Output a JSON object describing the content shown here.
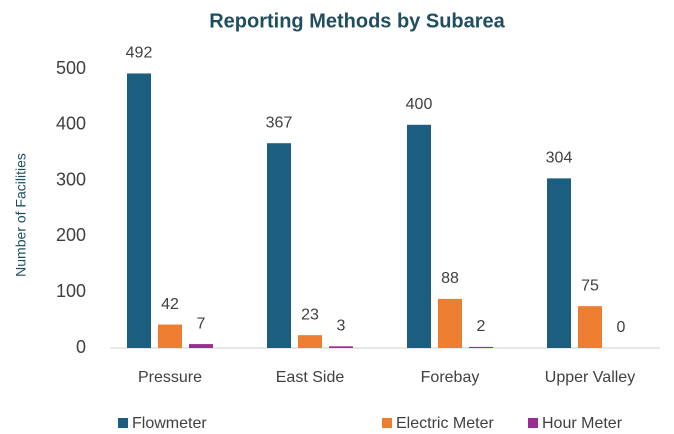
{
  "chart_data": {
    "type": "bar",
    "title": "Reporting Methods by Subarea",
    "ylabel": "Number of Facilities",
    "categories": [
      "Pressure",
      "East Side",
      "Forebay",
      "Upper Valley"
    ],
    "series": [
      {
        "name": "Flowmeter",
        "color": "#1b5e80",
        "values": [
          492,
          367,
          400,
          304
        ]
      },
      {
        "name": "Electric Meter",
        "color": "#ed7d31",
        "values": [
          42,
          23,
          88,
          75
        ]
      },
      {
        "name": "Hour Meter",
        "color": "#9b2d8f",
        "values": [
          7,
          3,
          2,
          0
        ]
      }
    ],
    "ylim": [
      0,
      500
    ],
    "yticks": [
      0,
      100,
      200,
      300,
      400,
      500
    ],
    "grid": false,
    "data_labels": true,
    "legend": "bottom"
  }
}
